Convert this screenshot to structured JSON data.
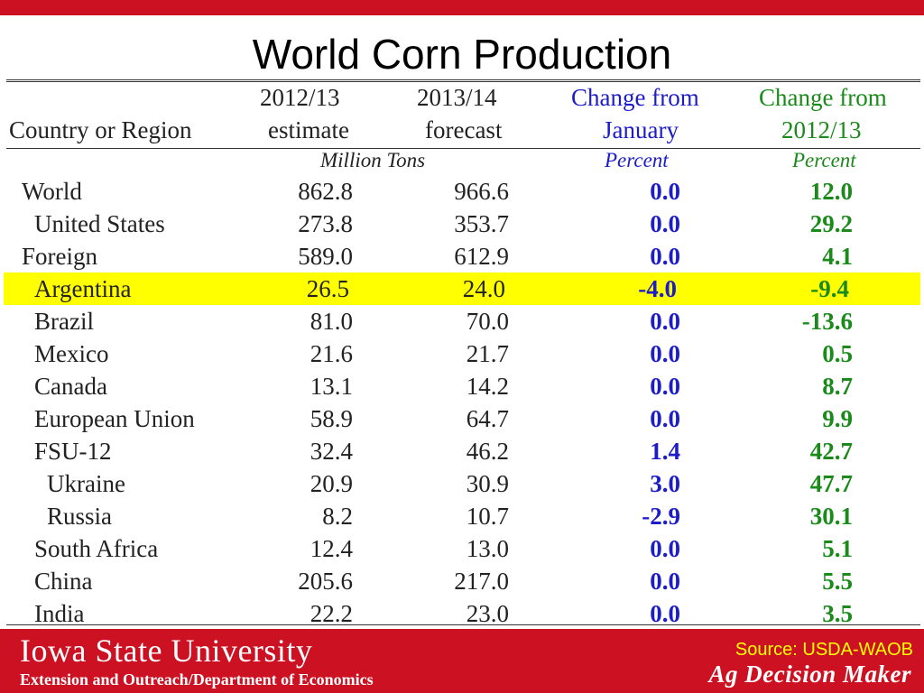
{
  "slide": {
    "title": "World Corn Production"
  },
  "colors": {
    "brand_red": "#cc1122",
    "highlight": "#ffff00",
    "change_january": "#1c1cc8",
    "change_prior_year": "#1a8a1a"
  },
  "table": {
    "headers": {
      "country_line2": "Country or Region",
      "col1_line1": "2012/13",
      "col1_line2": "estimate",
      "col2_line1": "2013/14",
      "col2_line2": "forecast",
      "col3_line1": "Change from",
      "col3_line2": "January",
      "col4_line1": "Change from",
      "col4_line2": "2012/13"
    },
    "units": {
      "volume": "Million Tons",
      "col3": "Percent",
      "col4": "Percent"
    },
    "rows": [
      {
        "name": "World",
        "estimate": "862.8",
        "forecast": "966.6",
        "chg_jan": "0.0",
        "chg_prev": "12.0"
      },
      {
        "name": "United States",
        "estimate": "273.8",
        "forecast": "353.7",
        "chg_jan": "0.0",
        "chg_prev": "29.2"
      },
      {
        "name": "Foreign",
        "estimate": "589.0",
        "forecast": "612.9",
        "chg_jan": "0.0",
        "chg_prev": "4.1"
      },
      {
        "name": "Argentina",
        "estimate": "26.5",
        "forecast": "24.0",
        "chg_jan": "-4.0",
        "chg_prev": "-9.4"
      },
      {
        "name": "Brazil",
        "estimate": "81.0",
        "forecast": "70.0",
        "chg_jan": "0.0",
        "chg_prev": "-13.6"
      },
      {
        "name": "Mexico",
        "estimate": "21.6",
        "forecast": "21.7",
        "chg_jan": "0.0",
        "chg_prev": "0.5"
      },
      {
        "name": "Canada",
        "estimate": "13.1",
        "forecast": "14.2",
        "chg_jan": "0.0",
        "chg_prev": "8.7"
      },
      {
        "name": "European Union",
        "estimate": "58.9",
        "forecast": "64.7",
        "chg_jan": "0.0",
        "chg_prev": "9.9"
      },
      {
        "name": "FSU-12",
        "estimate": "32.4",
        "forecast": "46.2",
        "chg_jan": "1.4",
        "chg_prev": "42.7"
      },
      {
        "name": "Ukraine",
        "estimate": "20.9",
        "forecast": "30.9",
        "chg_jan": "3.0",
        "chg_prev": "47.7"
      },
      {
        "name": "Russia",
        "estimate": "8.2",
        "forecast": "10.7",
        "chg_jan": "-2.9",
        "chg_prev": "30.1"
      },
      {
        "name": "South Africa",
        "estimate": "12.4",
        "forecast": "13.0",
        "chg_jan": "0.0",
        "chg_prev": "5.1"
      },
      {
        "name": "China",
        "estimate": "205.6",
        "forecast": "217.0",
        "chg_jan": "0.0",
        "chg_prev": "5.5"
      },
      {
        "name": "India",
        "estimate": "22.2",
        "forecast": "23.0",
        "chg_jan": "0.0",
        "chg_prev": "3.5"
      }
    ]
  },
  "footer": {
    "university": "Iowa State University",
    "department": "Extension and Outreach/Department of Economics",
    "source": "Source: USDA-WAOB",
    "program": "Ag Decision Maker"
  }
}
